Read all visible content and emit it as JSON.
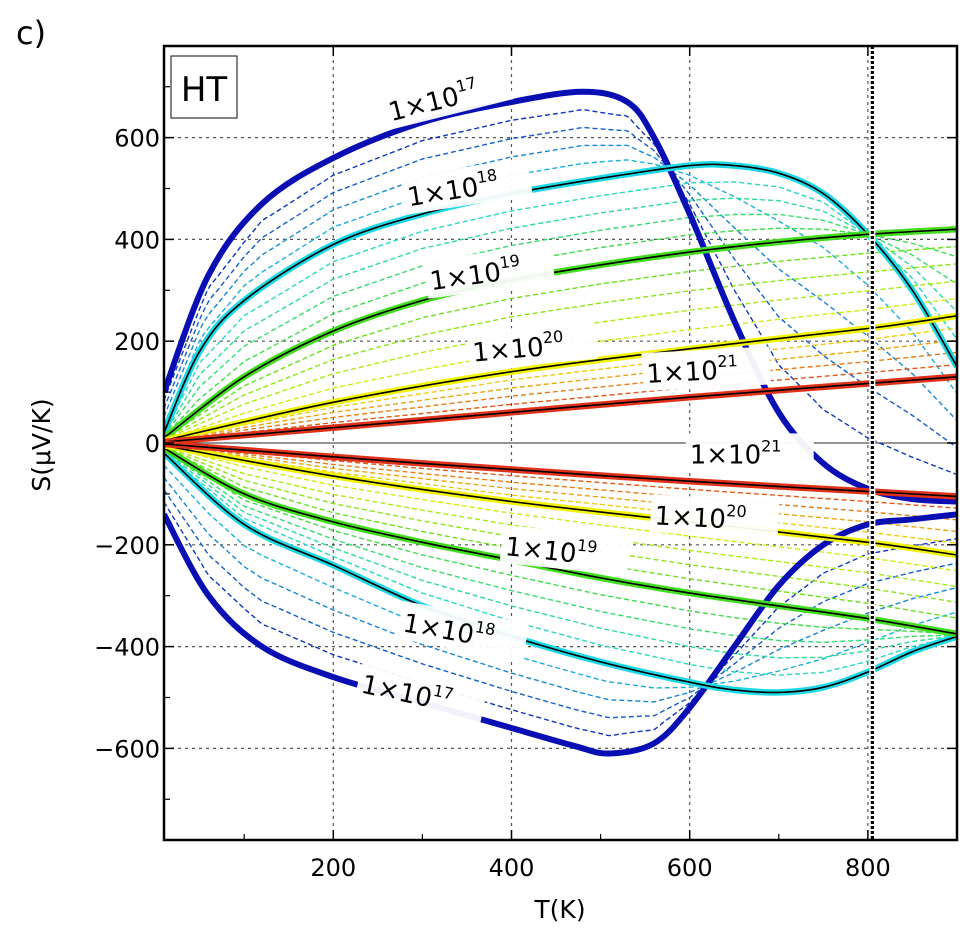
{
  "panel_label": "c)",
  "chart_data": {
    "type": "line",
    "title": "",
    "box_label": "HT",
    "xlabel": "T(K)",
    "ylabel": "S(μV/K)",
    "xlim": [
      10,
      900
    ],
    "ylim": [
      -780,
      780
    ],
    "xticks": [
      200,
      400,
      600,
      800
    ],
    "yticks": [
      -600,
      -400,
      -200,
      0,
      200,
      400,
      600
    ],
    "xtick_labels": [
      "200",
      "400",
      "600",
      "800"
    ],
    "ytick_labels": [
      "−600",
      "−400",
      "−200",
      "0",
      "200",
      "400",
      "600"
    ],
    "grid": true,
    "vertical_marker_T": 805,
    "colors": {
      "n1e17": "#0a0fb4",
      "n1e18": "#1fd8e6",
      "n1e19": "#44dd22",
      "n1e20": "#f2f20a",
      "n1e21": "#e0321a",
      "guide": "#000000"
    },
    "series": [
      {
        "name": "p 1x10^17",
        "carrier": "p",
        "color_key": "n1e17",
        "style": "thick",
        "x": [
          10,
          60,
          120,
          200,
          300,
          400,
          480,
          530,
          560,
          600,
          650,
          700,
          750,
          800,
          850,
          900
        ],
        "y": [
          100,
          330,
          470,
          560,
          630,
          670,
          690,
          670,
          600,
          450,
          240,
          60,
          -40,
          -90,
          -110,
          -115
        ]
      },
      {
        "name": "p 1x10^18",
        "carrier": "p",
        "color_key": "n1e18",
        "style": "highlight",
        "x": [
          10,
          50,
          100,
          200,
          300,
          400,
          500,
          600,
          650,
          700,
          750,
          800,
          850,
          900
        ],
        "y": [
          20,
          180,
          280,
          390,
          450,
          490,
          520,
          545,
          545,
          530,
          490,
          410,
          300,
          150
        ]
      },
      {
        "name": "p 1x10^19",
        "carrier": "p",
        "color_key": "n1e19",
        "style": "highlight",
        "x": [
          10,
          100,
          200,
          300,
          400,
          500,
          600,
          700,
          800,
          900
        ],
        "y": [
          10,
          130,
          220,
          280,
          320,
          350,
          375,
          395,
          410,
          420
        ]
      },
      {
        "name": "p 1x10^20",
        "carrier": "p",
        "color_key": "n1e20",
        "style": "highlight",
        "x": [
          10,
          200,
          400,
          600,
          800,
          900
        ],
        "y": [
          5,
          80,
          140,
          185,
          225,
          250
        ]
      },
      {
        "name": "p 1x10^21",
        "carrier": "p",
        "color_key": "n1e21",
        "style": "highlight",
        "x": [
          10,
          300,
          600,
          900
        ],
        "y": [
          2,
          45,
          90,
          130
        ]
      },
      {
        "name": "n 1x10^17",
        "carrier": "n",
        "color_key": "n1e17",
        "style": "thick",
        "x": [
          10,
          60,
          120,
          200,
          300,
          400,
          470,
          510,
          560,
          600,
          650,
          700,
          750,
          800,
          850,
          900
        ],
        "y": [
          -140,
          -300,
          -400,
          -460,
          -510,
          -560,
          -595,
          -610,
          -590,
          -520,
          -400,
          -280,
          -200,
          -160,
          -150,
          -140
        ]
      },
      {
        "name": "n 1x10^18",
        "carrier": "n",
        "color_key": "n1e18",
        "style": "highlight",
        "x": [
          10,
          100,
          200,
          300,
          400,
          500,
          600,
          650,
          700,
          750,
          800,
          850,
          900
        ],
        "y": [
          -20,
          -160,
          -240,
          -320,
          -380,
          -430,
          -470,
          -485,
          -490,
          -480,
          -450,
          -410,
          -380
        ]
      },
      {
        "name": "n 1x10^19",
        "carrier": "n",
        "color_key": "n1e19",
        "style": "highlight",
        "x": [
          10,
          100,
          200,
          300,
          400,
          500,
          600,
          700,
          800,
          900
        ],
        "y": [
          -10,
          -100,
          -155,
          -195,
          -230,
          -265,
          -295,
          -320,
          -345,
          -375
        ]
      },
      {
        "name": "n 1x10^20",
        "carrier": "n",
        "color_key": "n1e20",
        "style": "highlight",
        "x": [
          10,
          200,
          400,
          600,
          800,
          900
        ],
        "y": [
          -5,
          -65,
          -115,
          -155,
          -195,
          -220
        ]
      },
      {
        "name": "n 1x10^21",
        "carrier": "n",
        "color_key": "n1e21",
        "style": "highlight",
        "x": [
          10,
          300,
          600,
          900
        ],
        "y": [
          -2,
          -40,
          -75,
          -105
        ]
      }
    ],
    "annotations": [
      {
        "base": "1×10",
        "exp": "17",
        "x": 265,
        "y": 632,
        "angle": -14
      },
      {
        "base": "1×10",
        "exp": "18",
        "x": 285,
        "y": 465,
        "angle": -9
      },
      {
        "base": "1×10",
        "exp": "19",
        "x": 310,
        "y": 300,
        "angle": -8
      },
      {
        "base": "1×10",
        "exp": "20",
        "x": 357,
        "y": 160,
        "angle": -5
      },
      {
        "base": "1×10",
        "exp": "21",
        "x": 552,
        "y": 118,
        "angle": -3
      },
      {
        "base": "1×10",
        "exp": "21",
        "x": 600,
        "y": -40,
        "angle": 0
      },
      {
        "base": "1×10",
        "exp": "20",
        "x": 560,
        "y": -160,
        "angle": 3
      },
      {
        "base": "1×10",
        "exp": "19",
        "x": 392,
        "y": -220,
        "angle": 6
      },
      {
        "base": "1×10",
        "exp": "18",
        "x": 277,
        "y": -370,
        "angle": 10
      },
      {
        "base": "1×10",
        "exp": "17",
        "x": 230,
        "y": -490,
        "angle": 12
      }
    ]
  }
}
